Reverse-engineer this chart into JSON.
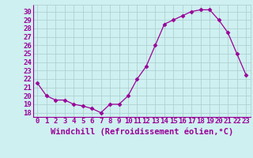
{
  "x": [
    0,
    1,
    2,
    3,
    4,
    5,
    6,
    7,
    8,
    9,
    10,
    11,
    12,
    13,
    14,
    15,
    16,
    17,
    18,
    19,
    20,
    21,
    22,
    23
  ],
  "y": [
    21.5,
    20.0,
    19.5,
    19.5,
    19.0,
    18.8,
    18.5,
    18.0,
    19.0,
    19.0,
    20.0,
    22.0,
    23.5,
    26.0,
    28.5,
    29.0,
    29.5,
    30.0,
    30.2,
    30.2,
    29.0,
    27.5,
    25.0,
    22.5
  ],
  "line_color": "#990099",
  "marker": "D",
  "marker_size": 2.5,
  "bg_color": "#cff0f0",
  "grid_color": "#aacccc",
  "xlabel": "Windchill (Refroidissement éolien,°C)",
  "xlabel_color": "#990099",
  "xlabel_fontsize": 7.5,
  "ylabel_ticks": [
    18,
    19,
    20,
    21,
    22,
    23,
    24,
    25,
    26,
    27,
    28,
    29,
    30
  ],
  "ylim": [
    17.5,
    30.8
  ],
  "xlim": [
    -0.5,
    23.5
  ],
  "tick_fontsize": 6.5,
  "tick_color": "#990099",
  "spine_color": "#990099"
}
